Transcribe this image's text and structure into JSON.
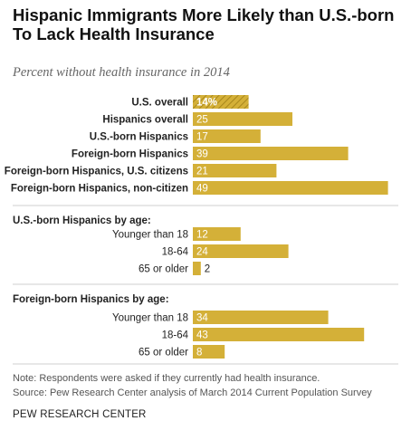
{
  "header": {
    "title_line1": "Hispanic Immigrants More Likely than U.S.-born",
    "title_line2": "To Lack Health Insurance",
    "subtitle": "Percent without health insurance in 2014"
  },
  "footer": {
    "note": "Note: Respondents were asked if they currently had health insurance.",
    "source": "Source: Pew Research Center analysis of March 2014 Current Population Survey",
    "credit": "PEW RESEARCH CENTER"
  },
  "colors": {
    "bar": "#d4b038",
    "divider": "#cfcfcf",
    "hatch_line": "#a8871c"
  },
  "chart_data": {
    "type": "bar",
    "orientation": "horizontal",
    "unit": "percent",
    "groups": [
      {
        "heading": "",
        "categories": [
          "U.S. overall",
          "Hispanics overall",
          "U.S.-born Hispanics",
          "Foreign-born Hispanics",
          "Foreign-born Hispanics, U.S. citizens",
          "Foreign-born Hispanics, non-citizen"
        ],
        "values": [
          14,
          25,
          17,
          39,
          21,
          49
        ],
        "labels": [
          "14%",
          "25",
          "17",
          "39",
          "21",
          "49"
        ],
        "hatched": [
          true,
          false,
          false,
          false,
          false,
          false
        ],
        "bold_labels": true
      },
      {
        "heading": "U.S.-born Hispanics by age:",
        "categories": [
          "Younger than 18",
          "18-64",
          "65 or older"
        ],
        "values": [
          12,
          24,
          2
        ],
        "labels": [
          "12",
          "24",
          "2"
        ],
        "hatched": [
          false,
          false,
          false
        ],
        "bold_labels": false
      },
      {
        "heading": "Foreign-born Hispanics by age:",
        "categories": [
          "Younger than 18",
          "18-64",
          "65 or older"
        ],
        "values": [
          34,
          43,
          8
        ],
        "labels": [
          "34",
          "43",
          "8"
        ],
        "hatched": [
          false,
          false,
          false
        ],
        "bold_labels": false
      }
    ]
  }
}
